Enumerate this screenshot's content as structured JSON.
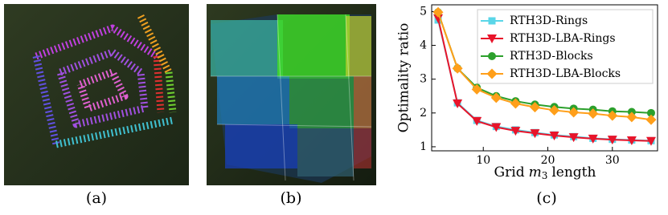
{
  "captions": [
    "(a)",
    "(b)",
    "(c)"
  ],
  "chart_data": {
    "type": "line",
    "y_label": "Optimality ratio",
    "x_label_parts": [
      "Grid",
      "m",
      "3",
      "length"
    ],
    "x": [
      3,
      6,
      9,
      12,
      15,
      18,
      21,
      24,
      27,
      30,
      33,
      36
    ],
    "xlim": [
      2,
      37
    ],
    "xticks": [
      10,
      20,
      30
    ],
    "ylim": [
      0.88,
      5.2
    ],
    "yticks": [
      1,
      2,
      3,
      4,
      5
    ],
    "grid": false,
    "legend": "upper right",
    "series": [
      {
        "name": "RTH3D-Rings",
        "color": "#5ad6e8",
        "marker": "square",
        "values": [
          4.75,
          2.3,
          1.78,
          1.6,
          1.5,
          1.42,
          1.35,
          1.3,
          1.25,
          1.22,
          1.2,
          1.18
        ]
      },
      {
        "name": "RTH3D-LBA-Rings",
        "color": "#e8142a",
        "marker": "triangle-down",
        "values": [
          4.8,
          2.28,
          1.76,
          1.58,
          1.47,
          1.4,
          1.33,
          1.28,
          1.24,
          1.21,
          1.19,
          1.17
        ]
      },
      {
        "name": "RTH3D-Blocks",
        "color": "#2ca02c",
        "marker": "circle",
        "values": [
          4.98,
          3.32,
          2.75,
          2.5,
          2.35,
          2.25,
          2.18,
          2.13,
          2.1,
          2.05,
          2.03,
          2.0
        ]
      },
      {
        "name": "RTH3D-LBA-Blocks",
        "color": "#ff9f1a",
        "marker": "diamond",
        "values": [
          4.98,
          3.32,
          2.7,
          2.45,
          2.28,
          2.17,
          2.08,
          2.02,
          1.98,
          1.92,
          1.88,
          1.8
        ]
      }
    ]
  }
}
